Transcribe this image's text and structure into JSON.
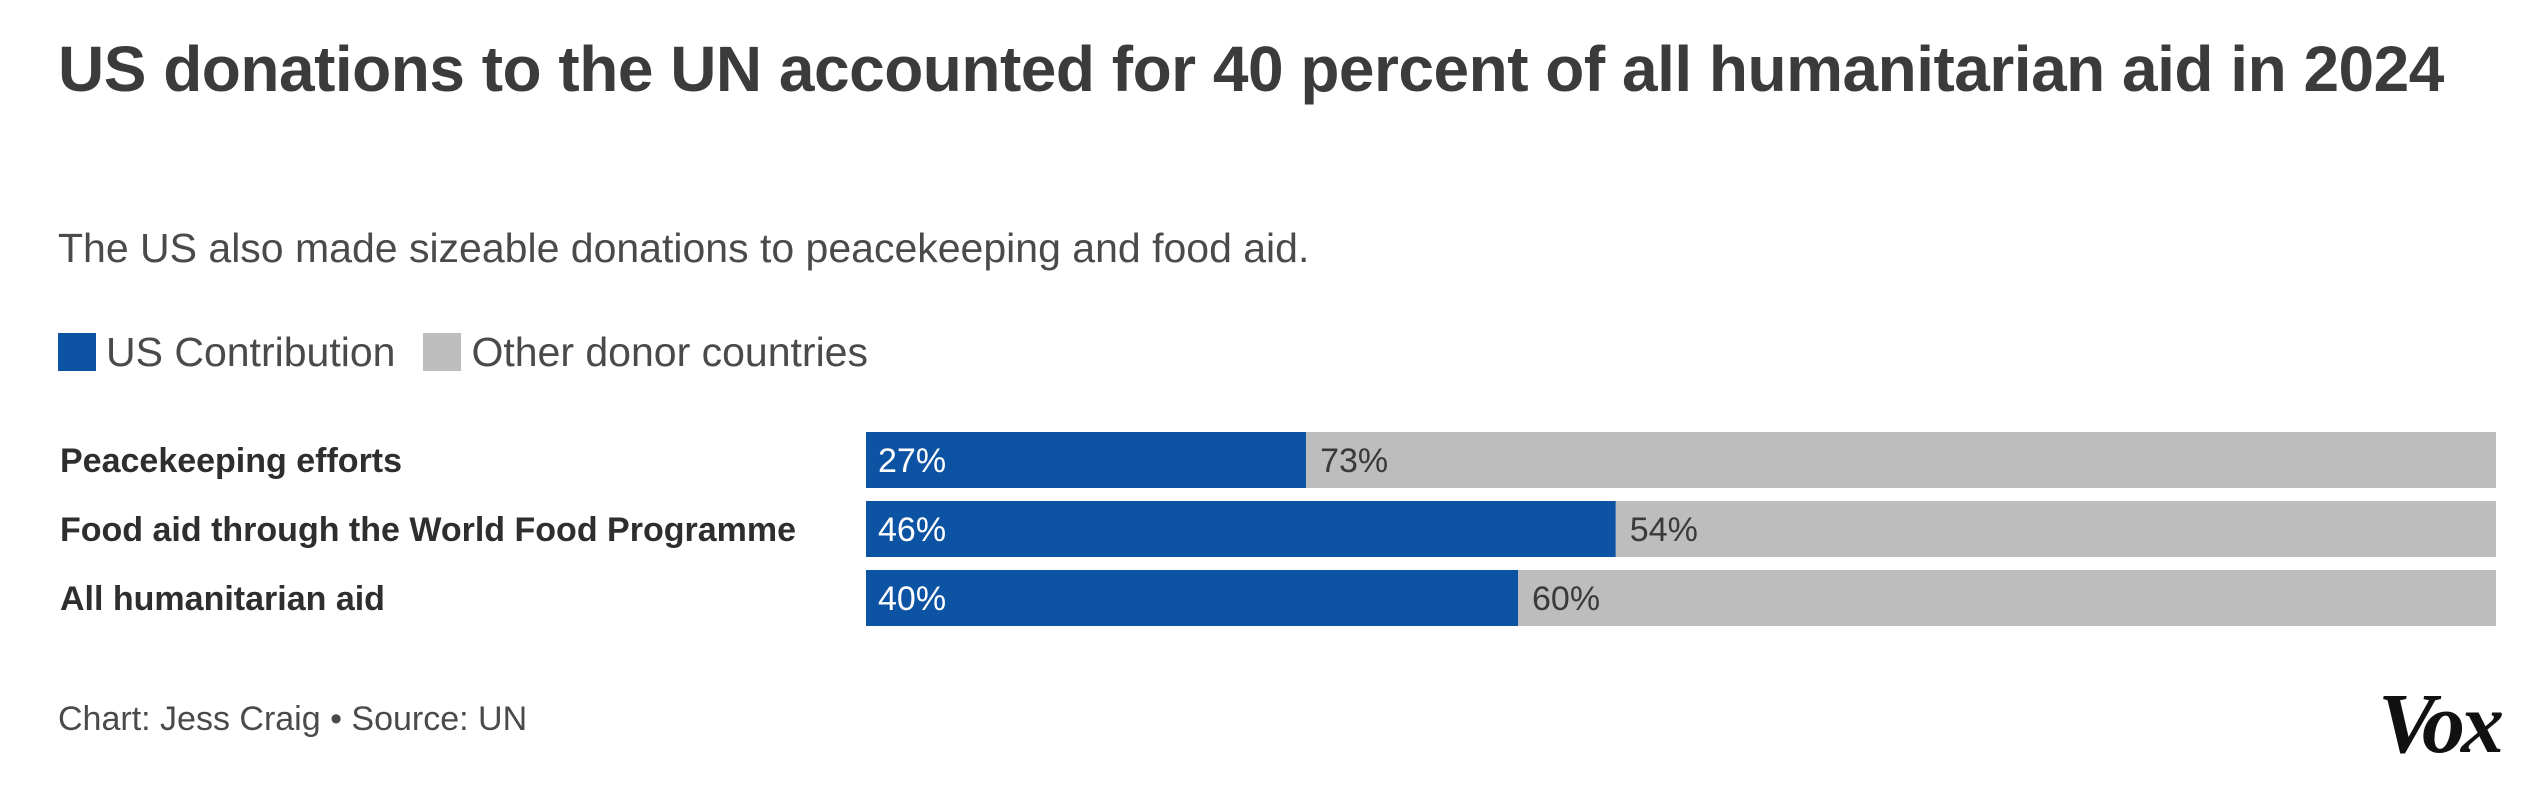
{
  "title": "US donations to the UN accounted for 40 percent of all humanitarian aid in 2024",
  "subtitle": "The US also made sizeable donations to peacekeeping and food aid.",
  "legend": {
    "us_label": "US Contribution",
    "other_label": "Other donor countries"
  },
  "colors": {
    "us": "#0d53a3",
    "other": "#bdbdbd"
  },
  "chart_data": {
    "type": "bar",
    "stacked": true,
    "orientation": "horizontal",
    "categories": [
      "Peacekeeping efforts",
      "Food aid through the World Food Programme",
      "All humanitarian aid"
    ],
    "series": [
      {
        "name": "US Contribution",
        "values": [
          27,
          46,
          40
        ]
      },
      {
        "name": "Other donor countries",
        "values": [
          73,
          54,
          60
        ]
      }
    ],
    "value_labels": {
      "us": [
        "27%",
        "46%",
        "40%"
      ],
      "other": [
        "73%",
        "54%",
        "60%"
      ]
    },
    "xlim": [
      0,
      100
    ]
  },
  "credit": "Chart: Jess Craig • Source: UN",
  "logo": "Vox"
}
